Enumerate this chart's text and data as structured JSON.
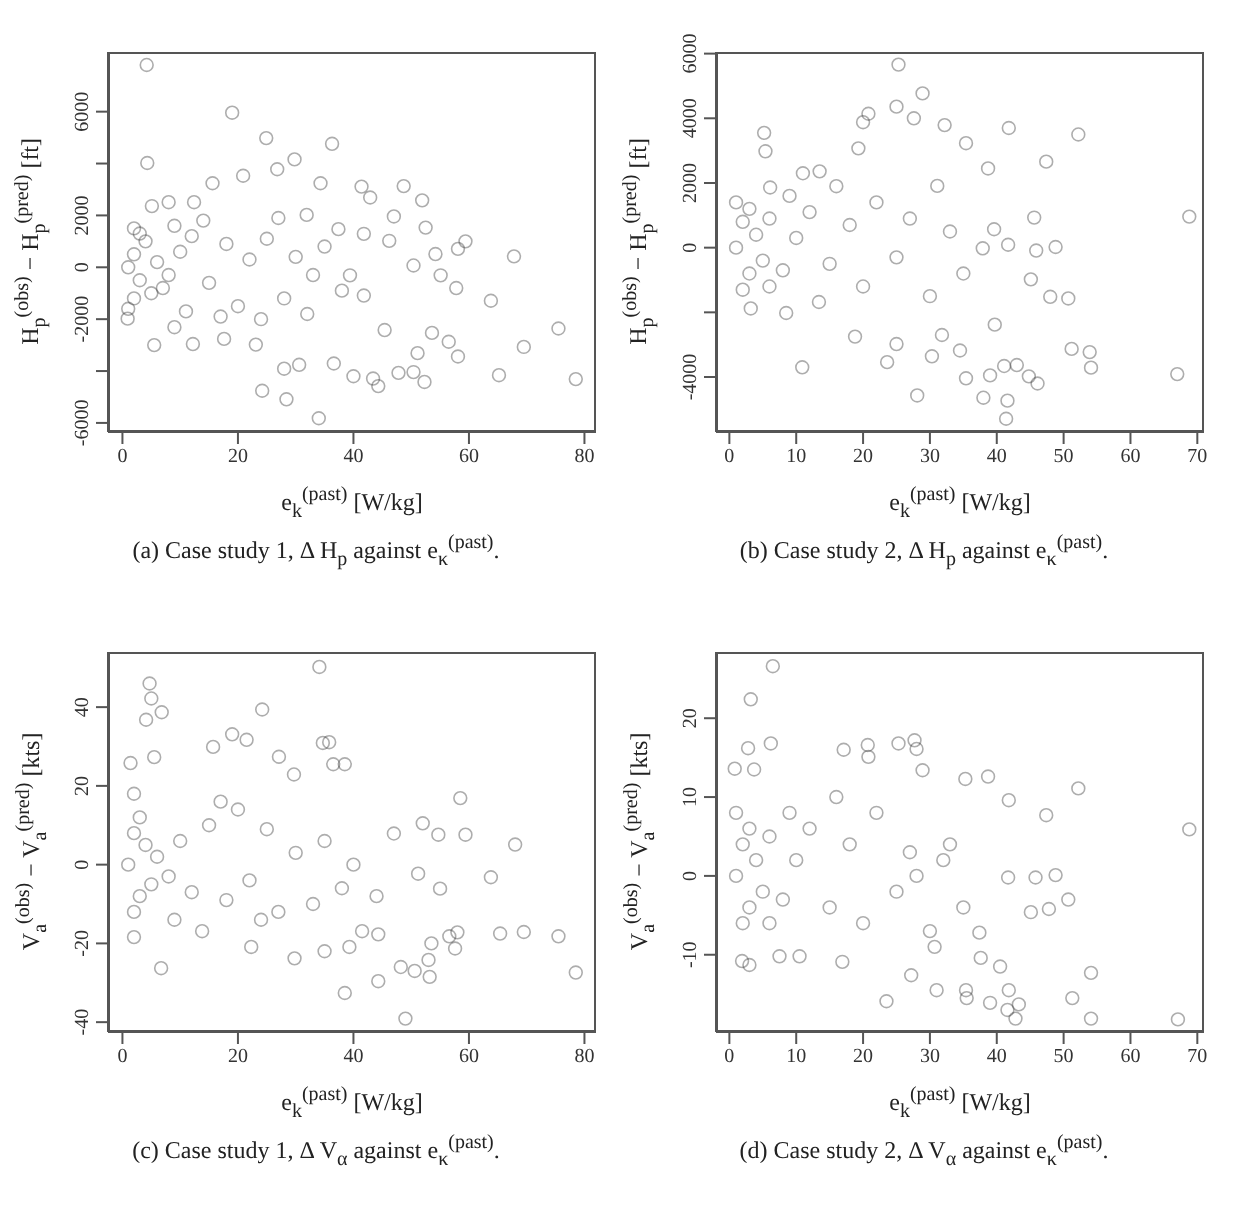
{
  "chart_data": [
    {
      "type": "scatter",
      "title": "(a) Case study 1, Δ H$_{p}$ against e$_{κ}$$^{(past)}$.",
      "xlabel": "e$_{k}$$^{(past)}$ [W/kg]",
      "ylabel": "H$_{p}$$^{(obs)}$ − H$_{p}$$^{(pred)}$ [ft]",
      "color": "#333333",
      "marker": "circle",
      "xlim": [
        -2.5,
        82
      ],
      "ylim": [
        -6350,
        8300
      ],
      "xticks": [
        0,
        20,
        40,
        60,
        80
      ],
      "yticks": [
        -6000,
        {
          "value": -4000,
          "label": null
        },
        -2000,
        0,
        2000,
        {
          "value": 4000,
          "label": null
        },
        6000
      ],
      "x": [
        4.2,
        19,
        4.3,
        24.9,
        36.3,
        29.8,
        26.8,
        20.9,
        15.6,
        48.7,
        41.4,
        51.9,
        34.3,
        42.9,
        47,
        52.5,
        59.4,
        67.8,
        58.1,
        54.2,
        50.4,
        63.8,
        57.8,
        55.1,
        75.5,
        69.5,
        78.5,
        65.2,
        58.1,
        56.5,
        53.6,
        51.1,
        52.3,
        50.4,
        47.8,
        44.3,
        43.4,
        40,
        36.6,
        34,
        28.4,
        24.2,
        28,
        30.6,
        23.1,
        12.2,
        5.5,
        0.9,
        9,
        17.6,
        45.4,
        41.8,
        39.4,
        41.8,
        46.2,
        37.4,
        31.9,
        8,
        5.1,
        12.4,
        1,
        2,
        3,
        4,
        5,
        2,
        3,
        6,
        8,
        10,
        7,
        12,
        15,
        18,
        20,
        22,
        25,
        28,
        30,
        33,
        35,
        38,
        14,
        17,
        24,
        27,
        32,
        1,
        2,
        9,
        11
      ],
      "values": [
        7800,
        5960,
        4020,
        4980,
        4760,
        4160,
        3780,
        3530,
        3240,
        3130,
        3110,
        2580,
        3240,
        2690,
        1960,
        1530,
        1000,
        420,
        710,
        510,
        70,
        -1290,
        -800,
        -310,
        -2360,
        -3070,
        -4310,
        -4160,
        -3440,
        -2870,
        -2530,
        -3310,
        -4420,
        -4040,
        -4070,
        -4580,
        -4290,
        -4200,
        -3710,
        -5820,
        -5090,
        -4760,
        -3910,
        -3760,
        -2980,
        -2960,
        -3000,
        -1980,
        -2310,
        -2760,
        -2420,
        -1090,
        -310,
        1290,
        1020,
        1470,
        2020,
        2510,
        2360,
        2510,
        0,
        500,
        -500,
        1000,
        -1000,
        -1200,
        1300,
        200,
        -300,
        600,
        -800,
        1200,
        -600,
        900,
        -1500,
        300,
        1100,
        -1200,
        400,
        -300,
        800,
        -900,
        1800,
        -1900,
        -2000,
        1900,
        -1800,
        -1600,
        1500,
        1600,
        -1700
      ]
    },
    {
      "type": "scatter",
      "title": "(b) Case study 2, Δ H$_{p}$ against e$_{κ}$$^{(past)}$.",
      "xlabel": "e$_{k}$$^{(past)}$ [W/kg]",
      "ylabel": "H$_{p}$$^{(obs)}$ − H$_{p}$$^{(pred)}$ [ft]",
      "color": "#333333",
      "marker": "circle",
      "xlim": [
        -2,
        71
      ],
      "ylim": [
        -5700,
        6050
      ],
      "xticks": [
        0,
        10,
        20,
        30,
        40,
        50,
        60,
        70
      ],
      "yticks": [
        -4000,
        {
          "value": -2000,
          "label": null
        },
        0,
        2000,
        4000,
        6000
      ],
      "x": [
        25.3,
        28.9,
        25,
        20.8,
        27.6,
        20,
        5.2,
        5.4,
        41.8,
        52.2,
        35.4,
        32.2,
        19.3,
        47.4,
        38.7,
        11,
        13.5,
        31.1,
        6.1,
        68.8,
        45.6,
        48.8,
        45.9,
        41.7,
        39.6,
        37.9,
        45.1,
        48,
        50.7,
        51.2,
        53.9,
        54.1,
        67,
        46.1,
        44.8,
        41.6,
        43,
        41.1,
        39,
        41.4,
        35.4,
        38,
        28.1,
        23.6,
        10.9,
        18.8,
        25,
        30.3,
        31.8,
        34.5,
        39.7,
        3.2,
        8.5,
        13.4,
        1,
        2,
        3,
        4,
        2,
        3,
        5,
        6,
        8,
        10,
        12,
        15,
        18,
        20,
        22,
        25,
        27,
        30,
        33,
        35,
        6,
        1,
        9,
        16
      ],
      "values": [
        5660,
        4770,
        4360,
        4140,
        4000,
        3880,
        3550,
        2980,
        3700,
        3500,
        3230,
        3790,
        3070,
        2660,
        2450,
        2300,
        2360,
        1910,
        1860,
        960,
        930,
        20,
        -90,
        90,
        570,
        -20,
        -980,
        -1520,
        -1570,
        -3130,
        -3230,
        -3710,
        -3910,
        -4200,
        -3980,
        -4730,
        -3630,
        -3660,
        -3950,
        -5290,
        -4040,
        -4640,
        -4570,
        -3540,
        -3700,
        -2750,
        -2980,
        -3360,
        -2700,
        -3180,
        -2380,
        -1880,
        -2020,
        -1680,
        0,
        800,
        -800,
        400,
        -1300,
        1200,
        -400,
        900,
        -700,
        300,
        1100,
        -500,
        700,
        -1200,
        1400,
        -300,
        900,
        -1500,
        500,
        -800,
        -1200,
        1400,
        1600,
        1900
      ]
    },
    {
      "type": "scatter",
      "title": "(c) Case study 1, Δ V$_{α}$ against e$_{κ}$$^{(past)}$.",
      "xlabel": "e$_{k}$$^{(past)}$ [W/kg]",
      "ylabel": "V$_{a}$$^{(obs)}$ − V$_{a}$$^{(pred)}$ [kts]",
      "color": "#333333",
      "marker": "circle",
      "xlim": [
        -2.5,
        82
      ],
      "ylim": [
        -42.5,
        54
      ],
      "xticks": [
        0,
        20,
        40,
        60,
        80
      ],
      "yticks": [
        -40,
        -20,
        0,
        20,
        40
      ],
      "x": [
        34.1,
        4.7,
        5,
        4.1,
        6.8,
        24.2,
        19,
        21.5,
        15.7,
        34.7,
        35.8,
        5.5,
        27.1,
        36.5,
        38.5,
        1.4,
        29.7,
        58.5,
        59.4,
        68,
        52,
        54.7,
        47,
        63.8,
        55,
        51.2,
        75.5,
        69.5,
        78.5,
        65.4,
        58,
        56.6,
        57.6,
        53.5,
        53,
        53.2,
        50.6,
        49,
        48.2,
        44.3,
        38.5,
        35,
        22.3,
        29.8,
        6.7,
        2,
        13.8,
        41.5,
        44.3,
        39.3,
        1,
        2,
        3,
        4,
        5,
        2,
        3,
        6,
        8,
        10,
        12,
        15,
        18,
        20,
        22,
        25,
        27,
        30,
        33,
        35,
        38,
        40,
        44,
        17,
        24,
        2,
        9
      ],
      "values": [
        50.2,
        46,
        42.2,
        36.8,
        38.7,
        39.4,
        33.1,
        31.7,
        29.9,
        30.9,
        31.1,
        27.3,
        27.4,
        25.5,
        25.5,
        25.8,
        22.9,
        16.9,
        7.6,
        5.1,
        10.5,
        7.6,
        7.9,
        -3.2,
        -6.1,
        -2.3,
        -18.2,
        -17.1,
        -27.4,
        -17.5,
        -17.2,
        -18.2,
        -21.3,
        -20,
        -24.2,
        -28.5,
        -27,
        -39.1,
        -26,
        -29.6,
        -32.6,
        -22,
        -20.9,
        -23.8,
        -26.3,
        -18.4,
        -16.9,
        -16.9,
        -17.7,
        -20.9,
        0,
        8,
        -8,
        5,
        -5,
        -12,
        12,
        2,
        -3,
        6,
        -7,
        10,
        -9,
        14,
        -4,
        9,
        -12,
        3,
        -10,
        6,
        -6,
        0,
        -8,
        16,
        -14,
        18,
        -14
      ]
    },
    {
      "type": "scatter",
      "title": "(d) Case study 2, Δ V$_{α}$ against e$_{κ}$$^{(past)}$.",
      "xlabel": "e$_{k}$$^{(past)}$ [W/kg]",
      "ylabel": "V$_{a}$$^{(obs)}$ − V$_{a}$$^{(pred)}$ [kts]",
      "color": "#333333",
      "marker": "circle",
      "xlim": [
        -2,
        71
      ],
      "ylim": [
        -19.8,
        28.4
      ],
      "xticks": [
        0,
        10,
        20,
        30,
        40,
        50,
        60,
        70
      ],
      "yticks": [
        -10,
        0,
        10,
        20
      ],
      "x": [
        6.5,
        3.2,
        6.2,
        2.8,
        17.1,
        20.7,
        20.8,
        25.3,
        27.7,
        28,
        35.3,
        38.7,
        28.9,
        52.2,
        41.8,
        47.4,
        0.8,
        3.7,
        68.8,
        48.8,
        45.8,
        41.7,
        50.7,
        47.8,
        45.1,
        54.1,
        51.3,
        54.1,
        67.1,
        42.8,
        41.6,
        41.8,
        43.3,
        40.5,
        39,
        35.4,
        35.5,
        37.6,
        27.2,
        23.5,
        31,
        16.9,
        10.5,
        3,
        1.9,
        7.5,
        30.7,
        37.4,
        1,
        2,
        3,
        4,
        2,
        3,
        5,
        6,
        8,
        10,
        12,
        15,
        18,
        20,
        22,
        25,
        27,
        30,
        33,
        35,
        6,
        1,
        9,
        16,
        28,
        32
      ],
      "values": [
        26.6,
        22.4,
        16.8,
        16.2,
        16,
        16.6,
        15.1,
        16.8,
        17.2,
        16.1,
        12.3,
        12.6,
        13.4,
        11.1,
        9.6,
        7.7,
        13.6,
        13.5,
        5.9,
        0.1,
        -0.2,
        -0.2,
        -3,
        -4.2,
        -4.6,
        -12.3,
        -15.5,
        -18.1,
        -18.2,
        -18.1,
        -17,
        -14.5,
        -16.3,
        -11.5,
        -16.1,
        -14.5,
        -15.5,
        -10.4,
        -12.6,
        -15.9,
        -14.5,
        -10.9,
        -10.2,
        -11.3,
        -10.8,
        -10.2,
        -9,
        -7.2,
        0,
        4,
        -4,
        2,
        -6,
        6,
        -2,
        5,
        -3,
        2,
        6,
        -4,
        4,
        -6,
        8,
        -2,
        3,
        -7,
        4,
        -4,
        -6,
        8,
        8,
        10,
        0,
        2
      ]
    }
  ]
}
